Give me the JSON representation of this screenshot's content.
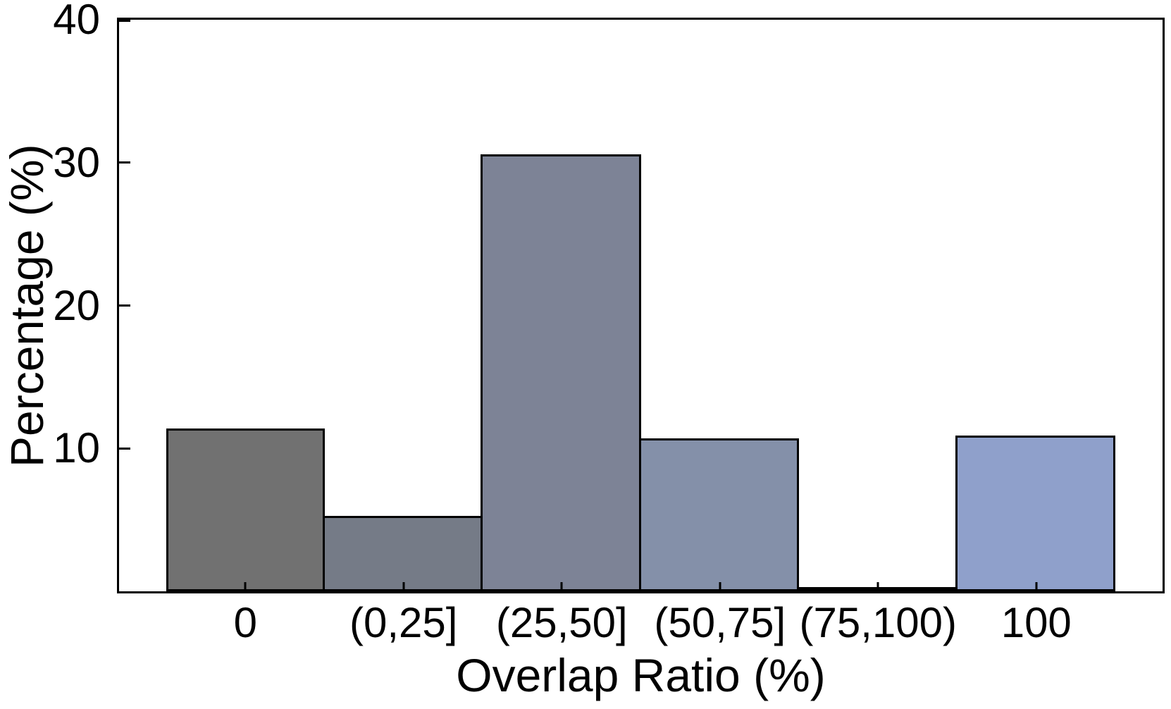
{
  "chart_data": {
    "type": "bar",
    "title": "",
    "xlabel": "Overlap Ratio (%)",
    "ylabel": "Percentage (%)",
    "categories": [
      "0",
      "(0,25]",
      "(25,50]",
      "(50,75]",
      "(75,100)",
      "100"
    ],
    "values": [
      11.4,
      5.3,
      30.6,
      10.7,
      0.2,
      10.9
    ],
    "bar_colors": [
      "#717171",
      "#757b87",
      "#7d8396",
      "#8490a9",
      "#8997b9",
      "#8fa0cb"
    ],
    "bar_edge_color": "#000000",
    "ylim": [
      0,
      40
    ],
    "yticks": [
      10,
      20,
      30,
      40
    ],
    "grid": false,
    "legend": null,
    "layout_hints": {
      "bars_adjacent": true,
      "ticks_direction": "in",
      "frame": "full-box"
    }
  }
}
